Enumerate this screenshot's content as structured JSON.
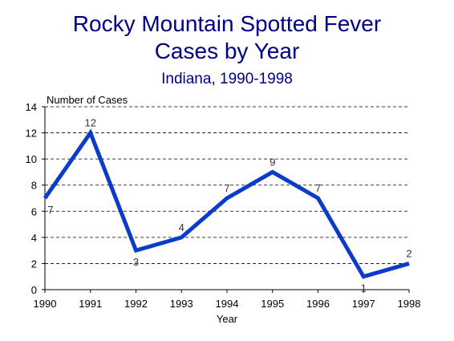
{
  "chart_data": {
    "type": "line",
    "title": "Rocky Mountain Spotted Fever",
    "title_line2": "Cases by Year",
    "subtitle": "Indiana, 1990-1998",
    "xlabel": "Year",
    "ylabel": "Number of Cases",
    "categories": [
      "1990",
      "1991",
      "1992",
      "1993",
      "1994",
      "1995",
      "1996",
      "1997",
      "1998"
    ],
    "values": [
      7,
      12,
      3,
      4,
      7,
      9,
      7,
      1,
      2
    ],
    "ylim": [
      0,
      14
    ],
    "yticks": [
      0,
      2,
      4,
      6,
      8,
      10,
      12,
      14
    ],
    "grid": "horizontal dashed",
    "line_color": "#0a3cc8",
    "title_color": "#000080"
  }
}
